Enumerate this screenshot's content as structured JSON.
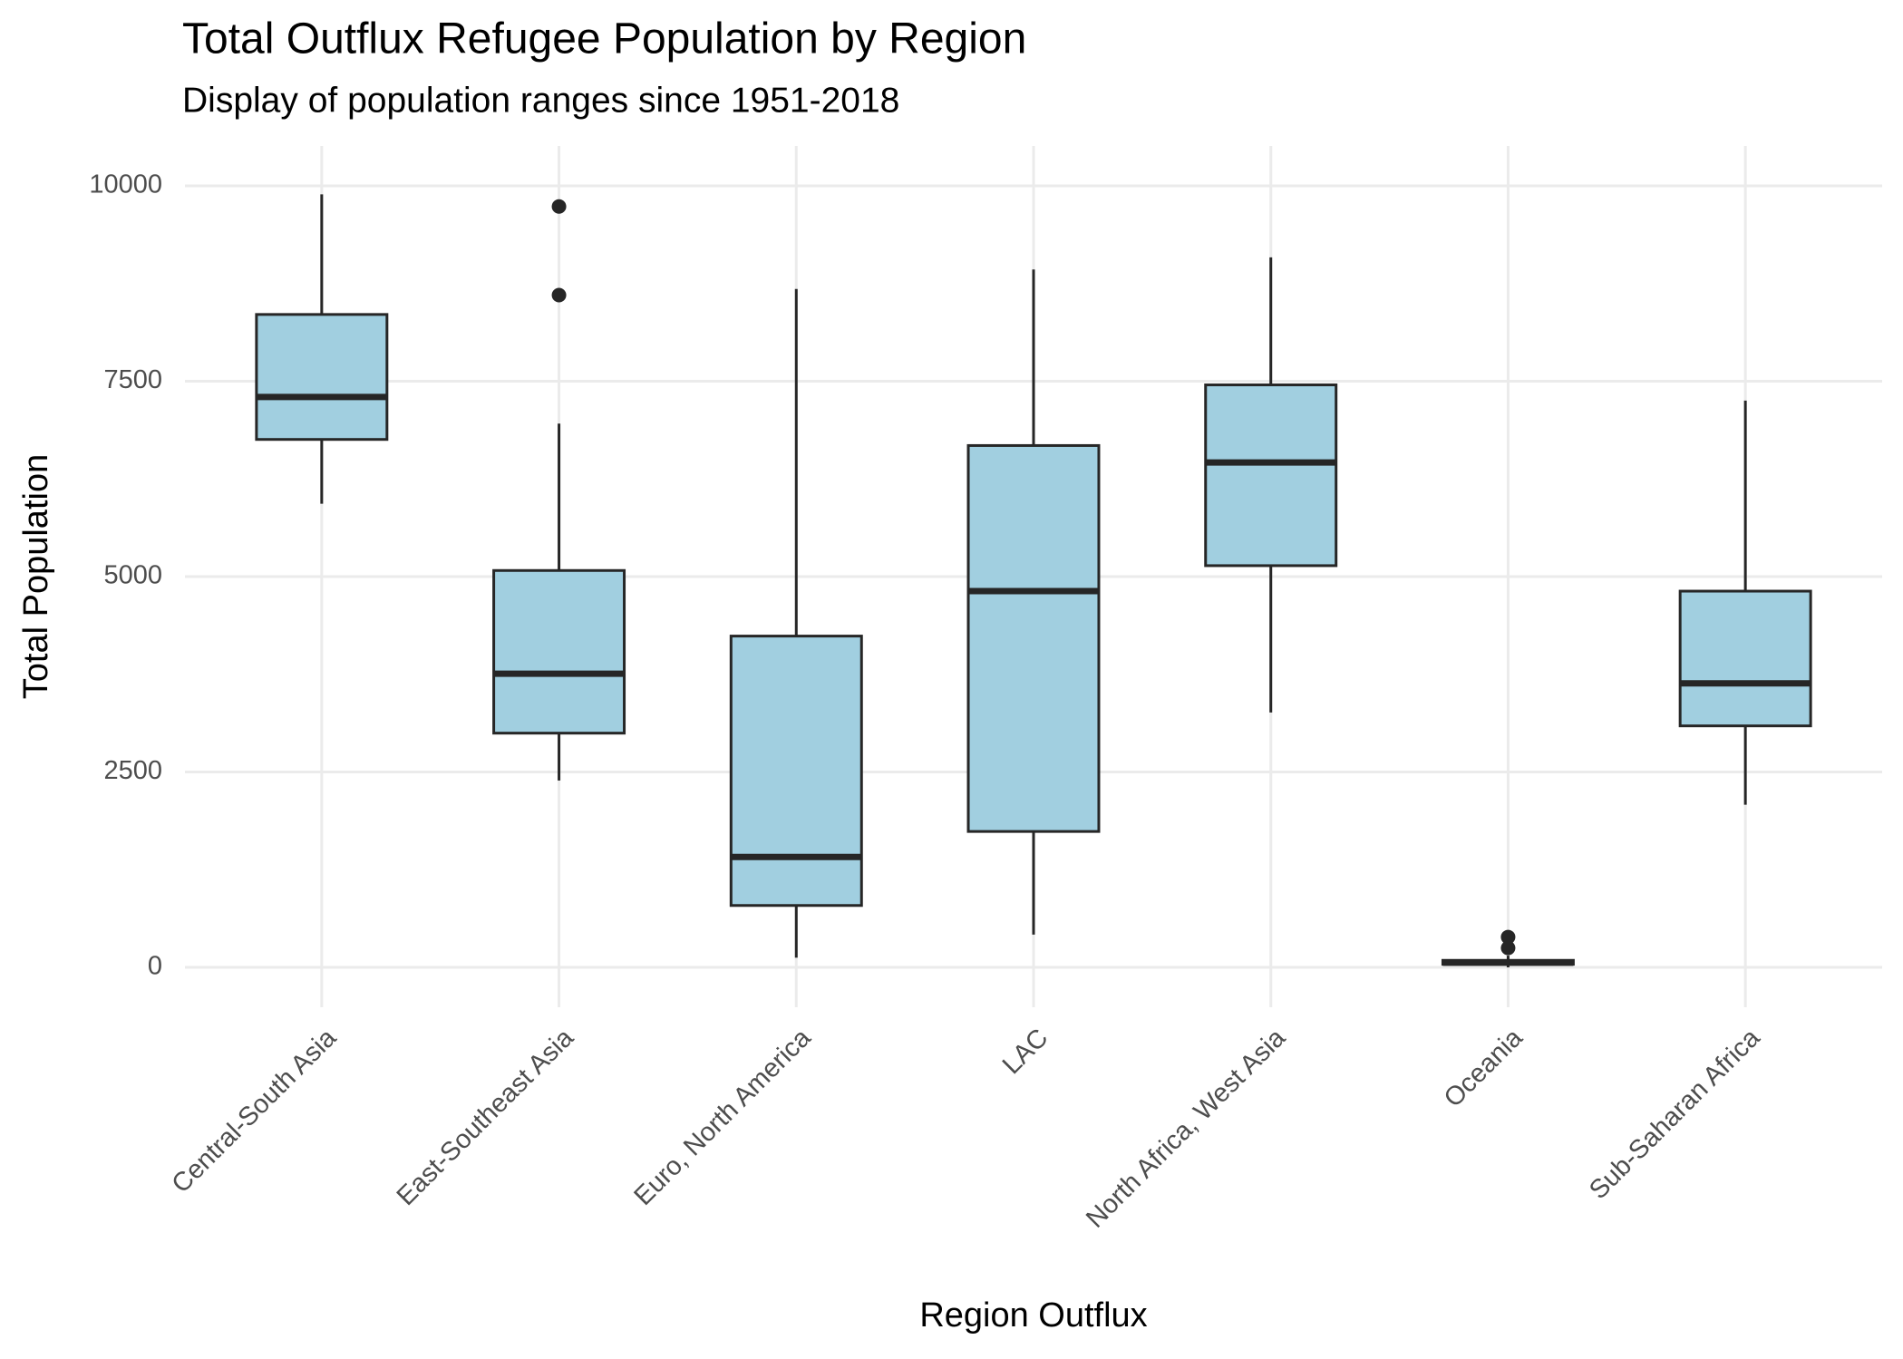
{
  "chart_data": {
    "type": "boxplot",
    "title": "Total Outflux Refugee Population by Region",
    "subtitle": "Display of population ranges since 1951-2018",
    "x_label": "Region Outflux",
    "y_label": "Total Population",
    "categories": [
      "Central-South Asia",
      "East-Southeast Asia",
      "Euro, North America",
      "LAC",
      "North Africa, West Asia",
      "Oceania",
      "Sub-Saharan Africa"
    ],
    "boxes": [
      {
        "min": 5932,
        "q1": 6755,
        "median": 7298,
        "q3": 8354,
        "max": 9891,
        "outliers": []
      },
      {
        "min": 2391,
        "q1": 2997,
        "median": 3758,
        "q3": 5078,
        "max": 6957,
        "outliers": [
          9736,
          8602
        ]
      },
      {
        "min": 124,
        "q1": 792,
        "median": 1413,
        "q3": 4239,
        "max": 8680,
        "outliers": []
      },
      {
        "min": 419,
        "q1": 1739,
        "median": 4814,
        "q3": 6677,
        "max": 8929,
        "outliers": []
      },
      {
        "min": 3261,
        "q1": 5140,
        "median": 6460,
        "q3": 7453,
        "max": 9084,
        "outliers": []
      },
      {
        "min": 0,
        "q1": 40,
        "median": 60,
        "q3": 90,
        "max": 150,
        "outliers": [
          388,
          248
        ]
      },
      {
        "min": 2081,
        "q1": 3090,
        "median": 3634,
        "q3": 4814,
        "max": 7252,
        "outliers": []
      }
    ],
    "fill": "#a1cfe0",
    "line_color": "#262626",
    "ylim": [
      -510,
      10510
    ],
    "yticks": [
      0,
      2500,
      5000,
      7500,
      10000
    ],
    "grid": true
  }
}
